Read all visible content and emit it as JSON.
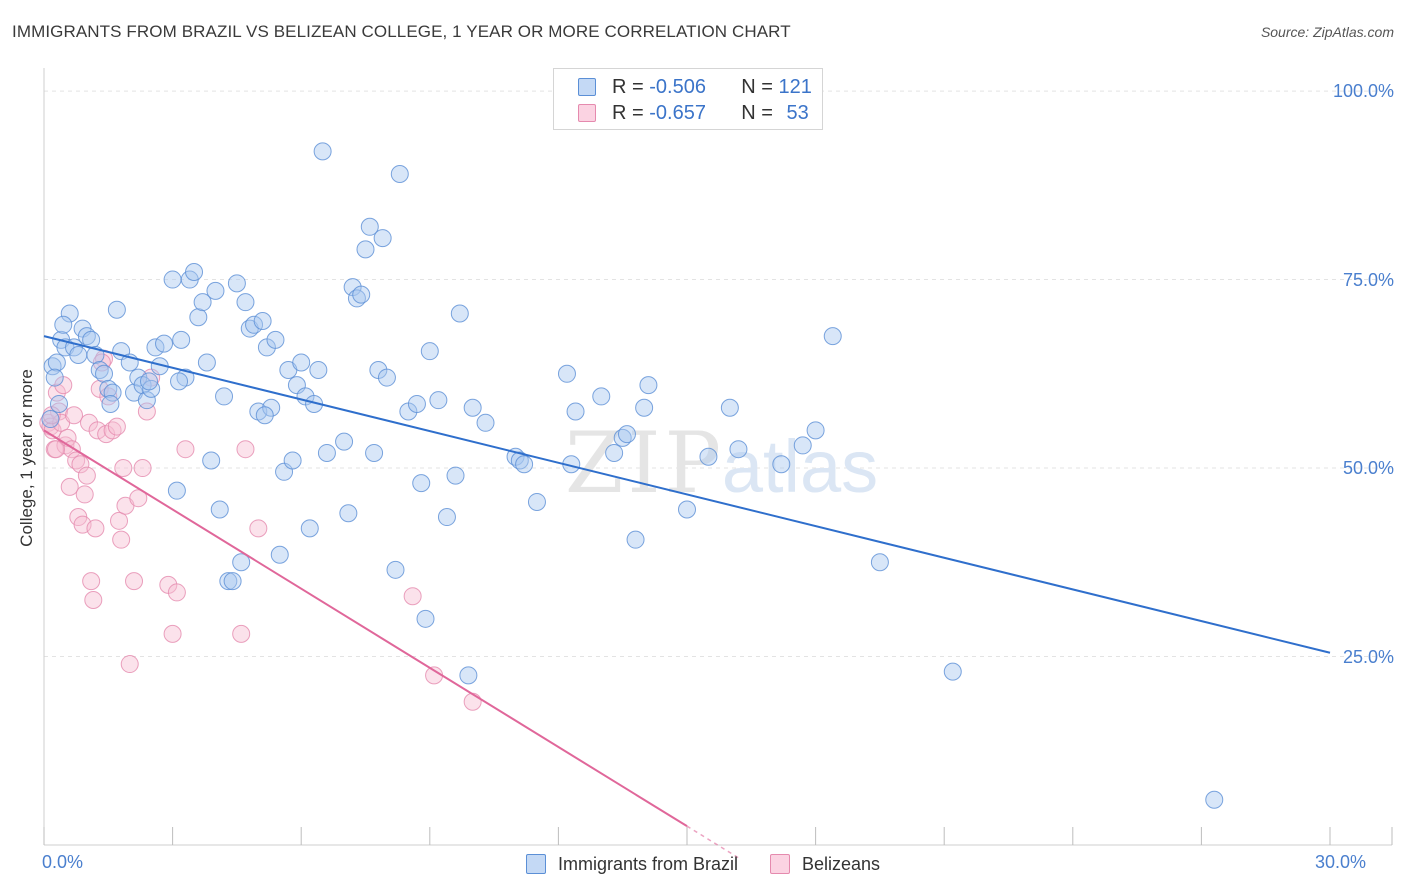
{
  "header": {
    "title": "IMMIGRANTS FROM BRAZIL VS BELIZEAN COLLEGE, 1 YEAR OR MORE CORRELATION CHART",
    "source": "Source: ZipAtlas.com"
  },
  "watermark": {
    "zip": "ZIP",
    "atlas": "atlas"
  },
  "stats_legend": {
    "row1": {
      "r_label": "R =",
      "r_value": "-0.506",
      "n_label": "N =",
      "n_value": "121"
    },
    "row2": {
      "r_label": "R =",
      "r_value": "-0.657",
      "n_label": "N =",
      "n_value": "53"
    }
  },
  "colors": {
    "brazil_fill": "#a9c8ef",
    "brazil_stroke": "#5b8fd6",
    "brazil_line": "#2f6fcc",
    "belize_fill": "#f6bfd3",
    "belize_stroke": "#e58aae",
    "belize_line": "#e0679a",
    "tick_text": "#4a7fce",
    "grid": "#e3e3e3"
  },
  "chart_data": {
    "type": "scatter",
    "title": "IMMIGRANTS FROM BRAZIL VS BELIZEAN COLLEGE, 1 YEAR OR MORE CORRELATION CHART",
    "xlabel": "",
    "ylabel": "College, 1 year or more",
    "xlim": [
      0,
      30
    ],
    "ylim": [
      0,
      102
    ],
    "x_ticks": [
      0,
      30
    ],
    "x_tick_labels": [
      "0.0%",
      "30.0%"
    ],
    "y_ticks": [
      25,
      50,
      75,
      100
    ],
    "y_tick_labels": [
      "25.0%",
      "50.0%",
      "75.0%",
      "100.0%"
    ],
    "grid": true,
    "legend": "bottom-center",
    "series": [
      {
        "name": "Immigrants from Brazil",
        "trend": {
          "x": [
            0,
            30
          ],
          "y": [
            67.5,
            25.5
          ]
        },
        "points": [
          [
            0.2,
            63.5
          ],
          [
            0.3,
            64
          ],
          [
            0.4,
            67
          ],
          [
            0.5,
            66
          ],
          [
            0.6,
            70.5
          ],
          [
            0.7,
            66
          ],
          [
            0.8,
            65
          ],
          [
            0.9,
            68.5
          ],
          [
            1.0,
            67.5
          ],
          [
            1.1,
            67
          ],
          [
            1.2,
            65
          ],
          [
            1.3,
            63
          ],
          [
            1.4,
            62.5
          ],
          [
            1.5,
            60.5
          ],
          [
            1.6,
            60
          ],
          [
            1.7,
            71
          ],
          [
            1.8,
            65.5
          ],
          [
            2.0,
            64
          ],
          [
            2.1,
            60
          ],
          [
            2.2,
            62
          ],
          [
            2.3,
            61
          ],
          [
            2.4,
            59
          ],
          [
            2.5,
            60.5
          ],
          [
            2.6,
            66
          ],
          [
            2.7,
            63.5
          ],
          [
            2.8,
            66.5
          ],
          [
            3.0,
            75
          ],
          [
            3.1,
            47
          ],
          [
            3.2,
            67
          ],
          [
            3.3,
            62
          ],
          [
            3.4,
            75
          ],
          [
            3.5,
            76
          ],
          [
            3.6,
            70
          ],
          [
            3.7,
            72
          ],
          [
            3.8,
            64
          ],
          [
            3.9,
            51
          ],
          [
            4.0,
            73.5
          ],
          [
            4.1,
            44.5
          ],
          [
            4.2,
            59.5
          ],
          [
            4.3,
            35
          ],
          [
            4.4,
            35
          ],
          [
            4.5,
            74.5
          ],
          [
            4.6,
            37.5
          ],
          [
            4.7,
            72
          ],
          [
            4.8,
            68.5
          ],
          [
            4.9,
            69
          ],
          [
            5.0,
            57.5
          ],
          [
            5.1,
            69.5
          ],
          [
            5.2,
            66
          ],
          [
            5.3,
            58
          ],
          [
            5.4,
            67
          ],
          [
            5.5,
            38.5
          ],
          [
            5.6,
            49.5
          ],
          [
            5.7,
            63
          ],
          [
            5.8,
            51
          ],
          [
            5.9,
            61
          ],
          [
            6.0,
            64
          ],
          [
            6.1,
            59.5
          ],
          [
            6.2,
            42
          ],
          [
            6.3,
            58.5
          ],
          [
            6.4,
            63
          ],
          [
            6.5,
            92
          ],
          [
            7.0,
            53.5
          ],
          [
            7.1,
            44
          ],
          [
            7.2,
            74
          ],
          [
            7.3,
            72.5
          ],
          [
            7.4,
            73
          ],
          [
            7.5,
            79
          ],
          [
            7.6,
            82
          ],
          [
            7.7,
            52
          ],
          [
            7.8,
            63
          ],
          [
            7.9,
            80.5
          ],
          [
            8.0,
            62
          ],
          [
            8.2,
            36.5
          ],
          [
            8.3,
            89
          ],
          [
            8.5,
            57.5
          ],
          [
            8.7,
            58.5
          ],
          [
            8.8,
            48
          ],
          [
            8.9,
            30
          ],
          [
            9.0,
            65.5
          ],
          [
            9.2,
            59
          ],
          [
            9.4,
            43.5
          ],
          [
            9.6,
            49
          ],
          [
            9.7,
            70.5
          ],
          [
            9.9,
            22.5
          ],
          [
            10.3,
            56
          ],
          [
            11.0,
            51.5
          ],
          [
            11.1,
            51
          ],
          [
            11.2,
            50.5
          ],
          [
            11.5,
            45.5
          ],
          [
            12.2,
            62.5
          ],
          [
            12.4,
            57.5
          ],
          [
            13.0,
            59.5
          ],
          [
            13.3,
            52
          ],
          [
            13.5,
            54
          ],
          [
            13.6,
            54.5
          ],
          [
            13.8,
            40.5
          ],
          [
            14.1,
            61
          ],
          [
            15.0,
            44.5
          ],
          [
            15.5,
            51.5
          ],
          [
            16.0,
            58
          ],
          [
            16.2,
            52.5
          ],
          [
            17.2,
            50.5
          ],
          [
            17.7,
            53
          ],
          [
            18.4,
            67.5
          ],
          [
            19.5,
            37.5
          ],
          [
            21.2,
            23
          ],
          [
            27.3,
            6
          ],
          [
            18.0,
            55
          ],
          [
            0.15,
            56.5
          ],
          [
            0.25,
            62
          ],
          [
            0.35,
            58.5
          ],
          [
            1.55,
            58.5
          ],
          [
            2.45,
            61.5
          ],
          [
            6.6,
            52
          ],
          [
            10.0,
            58
          ],
          [
            14.0,
            58
          ],
          [
            12.3,
            50.5
          ],
          [
            5.15,
            57
          ],
          [
            3.15,
            61.5
          ],
          [
            0.45,
            69
          ]
        ]
      },
      {
        "name": "Belizeans",
        "trend": {
          "x": [
            0,
            15
          ],
          "y": [
            55,
            2.5
          ]
        },
        "points": [
          [
            0.1,
            56
          ],
          [
            0.15,
            55.5
          ],
          [
            0.2,
            55
          ],
          [
            0.25,
            52.5
          ],
          [
            0.3,
            60
          ],
          [
            0.35,
            57.5
          ],
          [
            0.4,
            56
          ],
          [
            0.45,
            61
          ],
          [
            0.5,
            53
          ],
          [
            0.55,
            54
          ],
          [
            0.6,
            47.5
          ],
          [
            0.65,
            52.5
          ],
          [
            0.7,
            57
          ],
          [
            0.75,
            51
          ],
          [
            0.8,
            43.5
          ],
          [
            0.85,
            50.5
          ],
          [
            0.9,
            42.5
          ],
          [
            0.95,
            46.5
          ],
          [
            1.0,
            49
          ],
          [
            1.05,
            56
          ],
          [
            1.1,
            35
          ],
          [
            1.15,
            32.5
          ],
          [
            1.2,
            42
          ],
          [
            1.25,
            55
          ],
          [
            1.3,
            60.5
          ],
          [
            1.4,
            64.5
          ],
          [
            1.45,
            54.5
          ],
          [
            1.5,
            59.5
          ],
          [
            1.6,
            55
          ],
          [
            1.7,
            55.5
          ],
          [
            1.75,
            43
          ],
          [
            1.8,
            40.5
          ],
          [
            1.85,
            50
          ],
          [
            1.9,
            45
          ],
          [
            2.0,
            24
          ],
          [
            2.1,
            35
          ],
          [
            2.2,
            46
          ],
          [
            2.3,
            50
          ],
          [
            2.4,
            57.5
          ],
          [
            2.5,
            62
          ],
          [
            2.9,
            34.5
          ],
          [
            3.0,
            28
          ],
          [
            3.1,
            33.5
          ],
          [
            3.3,
            52.5
          ],
          [
            4.6,
            28
          ],
          [
            4.7,
            52.5
          ],
          [
            5.0,
            42
          ],
          [
            8.6,
            33
          ],
          [
            9.1,
            22.5
          ],
          [
            10.0,
            19
          ],
          [
            0.18,
            57
          ],
          [
            0.28,
            52.5
          ],
          [
            1.35,
            64
          ]
        ]
      }
    ]
  }
}
